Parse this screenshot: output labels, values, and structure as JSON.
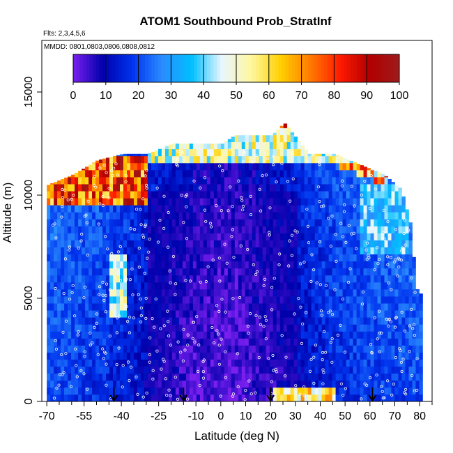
{
  "chart_data": {
    "type": "heatmap",
    "title": "ATOM1 Southbound Prob_StratInf",
    "subtitle_flights": "Flts: 2,3,4,5,6",
    "subtitle_dates": "MMDD: 0801,0803,0806,0808,0812",
    "xlabel": "Latitude (deg N)",
    "ylabel": "Altitude (m)",
    "xlim": [
      -72,
      85
    ],
    "ylim": [
      0,
      17500
    ],
    "x_ticks": [
      -70,
      -55,
      -40,
      -25,
      -10,
      0,
      10,
      20,
      30,
      40,
      50,
      60,
      70,
      80
    ],
    "y_ticks": [
      0,
      5000,
      10000,
      15000
    ],
    "colorbar": {
      "range": [
        0,
        100
      ],
      "ticks": [
        0,
        10,
        20,
        30,
        40,
        50,
        60,
        70,
        80,
        90,
        100
      ],
      "colors": [
        "#7a1ff0",
        "#0000aa",
        "#0033ee",
        "#2b8cff",
        "#00bfff",
        "#e8f6ff",
        "#fff7a0",
        "#ffd000",
        "#ff7a00",
        "#ff1a00",
        "#b00000",
        "#9e1b1b"
      ]
    },
    "profiles": [
      {
        "lat": -70,
        "top": 10500
      },
      {
        "lat": -60,
        "top": 11000
      },
      {
        "lat": -50,
        "top": 11700
      },
      {
        "lat": -40,
        "top": 12000
      },
      {
        "lat": -30,
        "top": 12000
      },
      {
        "lat": -20,
        "top": 12500
      },
      {
        "lat": -10,
        "top": 12500
      },
      {
        "lat": 0,
        "top": 12500
      },
      {
        "lat": 5,
        "top": 12900
      },
      {
        "lat": 20,
        "top": 12900
      },
      {
        "lat": 25,
        "top": 13500
      },
      {
        "lat": 35,
        "top": 12000
      },
      {
        "lat": 45,
        "top": 12000
      },
      {
        "lat": 55,
        "top": 11500
      },
      {
        "lat": 65,
        "top": 11000
      },
      {
        "lat": 72,
        "top": 10300
      },
      {
        "lat": 76,
        "top": 8500
      },
      {
        "lat": 78,
        "top": 5500
      },
      {
        "lat": 80,
        "top": 5200
      }
    ],
    "features": [
      {
        "label": "strat-inf-high-south",
        "lat_range": [
          -70,
          -30
        ],
        "alt_range": [
          9500,
          11800
        ],
        "prob": 95
      },
      {
        "label": "strat-inf-tropopause-rim",
        "lat_range": [
          -30,
          65
        ],
        "alt_range": [
          11500,
          13000
        ],
        "prob": 60
      },
      {
        "label": "strat-inf-lower-south",
        "lat_range": [
          -45,
          -38
        ],
        "alt_range": [
          4000,
          7000
        ],
        "prob": 55
      },
      {
        "label": "strat-inf-surface-20-40",
        "lat_range": [
          20,
          45
        ],
        "alt_range": [
          0,
          500
        ],
        "prob": 70
      },
      {
        "label": "strat-inf-north-upper",
        "lat_range": [
          55,
          75
        ],
        "alt_range": [
          7000,
          10500
        ],
        "prob": 45
      }
    ],
    "markers": [
      {
        "type": "arrow-down",
        "lat": -43
      },
      {
        "type": "arrow-down",
        "lat": -15
      },
      {
        "type": "arrow-down",
        "lat": 20
      },
      {
        "type": "arrow-down",
        "lat": 61
      }
    ]
  }
}
